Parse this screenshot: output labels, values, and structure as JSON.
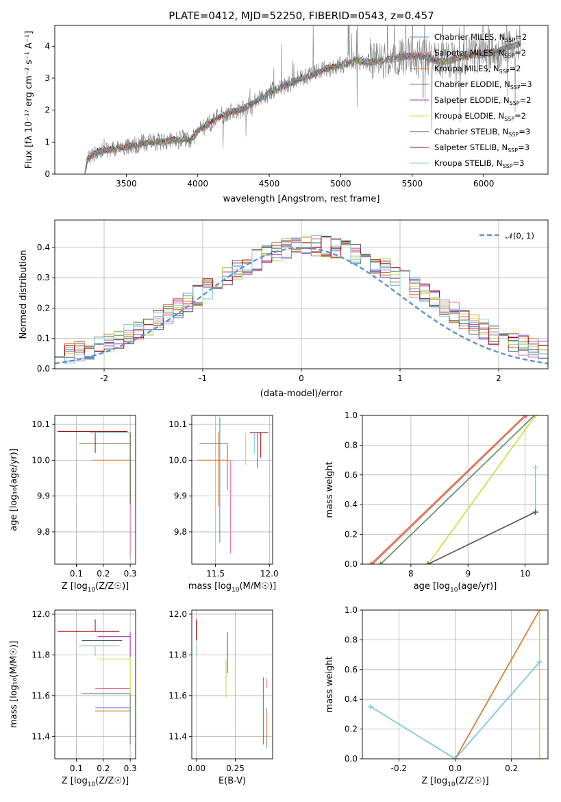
{
  "title": "PLATE=0412, MJD=52250, FIBERID=0543, z=0.457",
  "series_colors": {
    "Chabrier MILES": "#5a8fd8",
    "Salpeter MILES": "#e6739f",
    "Kroupa MILES": "#e07b2a",
    "Chabrier ELODIE": "#5e8a5a",
    "Salpeter ELODIE": "#9e3bb8",
    "Kroupa ELODIE": "#c8dc3a",
    "Chabrier STELIB": "#555555",
    "Salpeter STELIB": "#a01010",
    "Kroupa STELIB": "#80cad6"
  },
  "data_color": "#808080",
  "chart_data": [
    {
      "id": "spectrum",
      "type": "line",
      "title": "PLATE=0412, MJD=52250, FIBERID=0543, z=0.457",
      "xlabel": "wavelength [Angstrom, rest frame]",
      "ylabel": "Flux [fλ 10⁻¹⁷ erg cm⁻² s⁻¹ A⁻¹]",
      "xlim": [
        3000,
        6450
      ],
      "ylim": [
        0,
        4.65
      ],
      "xticks": [
        3500,
        4000,
        4500,
        5000,
        5500,
        6000
      ],
      "yticks": [
        0,
        1,
        2,
        3,
        4
      ],
      "grid": false,
      "legend_position": "upper-right",
      "legend": [
        {
          "main": "Chabrier MILES, N",
          "sub": "SSP",
          "tail": "=2",
          "series": "Chabrier MILES"
        },
        {
          "main": "Salpeter MILES, N",
          "sub": "SSP",
          "tail": "=2",
          "series": "Salpeter MILES"
        },
        {
          "main": "Kroupa MILES, N",
          "sub": "SSP",
          "tail": "=2",
          "series": "Kroupa MILES"
        },
        {
          "main": "Chabrier ELODIE, N",
          "sub": "SSP",
          "tail": "=3",
          "series": "Chabrier ELODIE"
        },
        {
          "main": "Salpeter ELODIE, N",
          "sub": "SSP",
          "tail": "=2",
          "series": "Salpeter ELODIE"
        },
        {
          "main": "Kroupa ELODIE, N",
          "sub": "SSP",
          "tail": "=2",
          "series": "Kroupa ELODIE"
        },
        {
          "main": "Chabrier STELIB, N",
          "sub": "SSP",
          "tail": "=3",
          "series": "Chabrier STELIB"
        },
        {
          "main": "Salpeter STELIB, N",
          "sub": "SSP",
          "tail": "=3",
          "series": "Salpeter STELIB"
        },
        {
          "main": "Kroupa STELIB, N",
          "sub": "SSP",
          "tail": "=3",
          "series": "Kroupa STELIB"
        }
      ],
      "continuum_x": [
        3210,
        3230,
        3300,
        3400,
        3500,
        3600,
        3700,
        3800,
        3900,
        3950,
        4000,
        4100,
        4200,
        4300,
        4400,
        4500,
        4600,
        4700,
        4800,
        4900,
        5000,
        5100,
        5200,
        5300,
        5400,
        5500,
        5600,
        5700,
        5800,
        5900,
        6000,
        6100,
        6200,
        6260
      ],
      "continuum_y": [
        0.0,
        0.5,
        0.7,
        0.78,
        0.85,
        0.95,
        1.0,
        1.05,
        1.1,
        1.05,
        1.35,
        1.65,
        1.9,
        2.0,
        2.25,
        2.55,
        2.75,
        2.95,
        3.1,
        3.3,
        3.4,
        3.55,
        3.5,
        3.55,
        3.65,
        3.7,
        3.65,
        3.5,
        3.6,
        3.7,
        3.75,
        3.85,
        4.0,
        4.1
      ]
    },
    {
      "id": "residuals",
      "type": "step",
      "xlabel": "(data-model)/error",
      "ylabel": "Normed distribution",
      "xlim": [
        -2.5,
        2.5
      ],
      "ylim": [
        0,
        0.49
      ],
      "xticks": [
        -2,
        -1,
        0,
        1,
        2
      ],
      "yticks": [
        0.0,
        0.1,
        0.2,
        0.3,
        0.4
      ],
      "grid": true,
      "legend_position": "upper-right",
      "reference": {
        "name": "𝒩(0, 1)",
        "mean": 0,
        "sigma": 1,
        "color": "#5a8fd8"
      },
      "bin_width": 0.1
    },
    {
      "id": "age_vs_Z",
      "type": "errorbar",
      "xlabel_main": "Z [log",
      "xlabel_sub": "10",
      "xlabel_tail": "(Z/Z☉)]",
      "ylabel": "age  [log₁₀(age/yr)]",
      "xlim": [
        0.02,
        0.32
      ],
      "ylim": [
        9.71,
        10.125
      ],
      "xticks": [
        0.1,
        0.2,
        0.3
      ],
      "yticks": [
        9.8,
        9.9,
        10.0,
        10.1
      ],
      "grid": true,
      "points": [
        {
          "series": "Chabrier MILES",
          "x": 0.25,
          "y": 10.077,
          "xerr": [
            0.07,
            0.05
          ],
          "yerr": [
            0.0,
            0.0
          ]
        },
        {
          "series": "Salpeter MILES",
          "x": 0.3,
          "y": 10.0,
          "xerr": [
            0.0,
            0.0
          ],
          "yerr": [
            0.27,
            0.0
          ]
        },
        {
          "series": "Kroupa MILES",
          "x": 0.23,
          "y": 10.0,
          "xerr": [
            0.07,
            0.07
          ],
          "yerr": [
            0.0,
            0.0
          ]
        },
        {
          "series": "Chabrier ELODIE",
          "x": 0.24,
          "y": 10.047,
          "xerr": [
            0.13,
            0.06
          ],
          "yerr": [
            0.0,
            0.0
          ]
        },
        {
          "series": "Salpeter ELODIE",
          "x": 0.3,
          "y": 10.077,
          "xerr": [
            0.0,
            0.0
          ],
          "yerr": [
            0.0,
            0.0
          ]
        },
        {
          "series": "Kroupa ELODIE",
          "x": 0.3,
          "y": 10.077,
          "xerr": [
            0.1,
            0.0
          ],
          "yerr": [
            0.2,
            0.0
          ]
        },
        {
          "series": "Chabrier STELIB",
          "x": 0.3,
          "y": 10.077,
          "xerr": [
            0.0,
            0.0
          ],
          "yerr": [
            0.2,
            0.0
          ]
        },
        {
          "series": "Salpeter STELIB",
          "x": 0.17,
          "y": 10.08,
          "xerr": [
            0.14,
            0.12
          ],
          "yerr": [
            0.06,
            0.0
          ]
        },
        {
          "series": "Kroupa STELIB",
          "x": 0.3,
          "y": 10.077,
          "xerr": [
            0.15,
            0.0
          ],
          "yerr": [
            0.0,
            0.0
          ]
        }
      ]
    },
    {
      "id": "age_vs_mass",
      "type": "errorbar",
      "xlabel_main": "mass [log",
      "xlabel_sub": "10",
      "xlabel_tail": "(M/M☉)]",
      "ylabel": "",
      "xlim": [
        11.28,
        12.03
      ],
      "ylim": [
        9.71,
        10.125
      ],
      "xticks": [
        11.5,
        12.0
      ],
      "yticks": [
        9.8,
        9.9,
        10.0,
        10.1
      ],
      "grid": true,
      "points": [
        {
          "series": "Chabrier MILES",
          "x": 11.54,
          "y": 10.0,
          "xerr": [
            0.0,
            0.0
          ],
          "yerr": [
            0.23,
            0.12
          ]
        },
        {
          "series": "Salpeter MILES",
          "x": 11.64,
          "y": 10.0,
          "xerr": [
            0.0,
            0.0
          ],
          "yerr": [
            0.26,
            0.0
          ]
        },
        {
          "series": "Kroupa MILES",
          "x": 11.53,
          "y": 10.0,
          "xerr": [
            0.2,
            0.1
          ],
          "yerr": [
            0.13,
            0.08
          ]
        },
        {
          "series": "Chabrier ELODIE",
          "x": 11.61,
          "y": 10.047,
          "xerr": [
            0.26,
            0.0
          ],
          "yerr": [
            0.13,
            0.0
          ]
        },
        {
          "series": "Salpeter ELODIE",
          "x": 11.89,
          "y": 10.077,
          "xerr": [
            0.0,
            0.0
          ],
          "yerr": [
            0.1,
            0.0
          ]
        },
        {
          "series": "Kroupa ELODIE",
          "x": 11.78,
          "y": 10.077,
          "xerr": [
            0.0,
            0.0
          ],
          "yerr": [
            0.09,
            0.0
          ]
        },
        {
          "series": "Chabrier STELIB",
          "x": 11.89,
          "y": 10.077,
          "xerr": [
            0.0,
            0.04
          ],
          "yerr": [
            0.0,
            0.0
          ]
        },
        {
          "series": "Salpeter STELIB",
          "x": 11.92,
          "y": 10.077,
          "xerr": [
            0.1,
            0.07
          ],
          "yerr": [
            0.07,
            0.0
          ]
        },
        {
          "series": "Kroupa STELIB",
          "x": 11.86,
          "y": 10.077,
          "xerr": [
            0.0,
            0.0
          ],
          "yerr": [
            0.06,
            0.0
          ]
        }
      ]
    },
    {
      "id": "mass_weight_vs_age",
      "type": "line",
      "xlabel_main": "age  [log",
      "xlabel_sub": "10",
      "xlabel_tail": "(age/yr)]",
      "ylabel": "mass weight",
      "xlim": [
        7.15,
        10.4
      ],
      "ylim": [
        0.0,
        1.0
      ],
      "xticks": [
        8,
        9,
        10
      ],
      "yticks": [
        0.0,
        0.2,
        0.4,
        0.6,
        0.8,
        1.0
      ],
      "grid": true,
      "series": [
        {
          "name": "Chabrier MILES",
          "x": [
            7.3,
            10.0
          ],
          "y": [
            0.0,
            1.0
          ]
        },
        {
          "name": "Salpeter MILES",
          "x": [
            7.33,
            10.02
          ],
          "y": [
            0.0,
            1.0
          ]
        },
        {
          "name": "Kroupa MILES",
          "x": [
            7.3,
            10.0
          ],
          "y": [
            0.0,
            1.0
          ]
        },
        {
          "name": "Chabrier ELODIE",
          "x": [
            7.47,
            10.16
          ],
          "y": [
            0.0,
            1.0
          ]
        },
        {
          "name": "Kroupa ELODIE",
          "x": [
            8.3,
            10.18
          ],
          "y": [
            0.0,
            1.0
          ]
        },
        {
          "name": "Kroupa STELIB",
          "x": [
            8.3,
            10.18,
            10.18
          ],
          "y": [
            0.0,
            0.35,
            0.65
          ]
        },
        {
          "name": "Chabrier STELIB",
          "x": [
            8.3,
            10.18
          ],
          "y": [
            0.0,
            0.35
          ]
        }
      ]
    },
    {
      "id": "mass_vs_Z",
      "type": "errorbar",
      "xlabel_main": "Z [log",
      "xlabel_sub": "10",
      "xlabel_tail": "(Z/Z☉)]",
      "ylabel": "mass [log₁₀(M/M☉)]",
      "xlim": [
        0.02,
        0.32
      ],
      "ylim": [
        11.29,
        12.02
      ],
      "xticks": [
        0.1,
        0.2,
        0.3
      ],
      "yticks": [
        11.4,
        11.6,
        11.8,
        12.0
      ],
      "grid": true,
      "points": [
        {
          "series": "Chabrier MILES",
          "x": 0.3,
          "y": 11.54,
          "xerr": [
            0.13,
            0.0
          ],
          "yerr": [
            0.0,
            0.0
          ]
        },
        {
          "series": "Salpeter MILES",
          "x": 0.3,
          "y": 11.635,
          "xerr": [
            0.13,
            0.0
          ],
          "yerr": [
            0.0,
            0.0
          ]
        },
        {
          "series": "Kroupa MILES",
          "x": 0.3,
          "y": 11.525,
          "xerr": [
            0.13,
            0.0
          ],
          "yerr": [
            0.0,
            0.0
          ]
        },
        {
          "series": "Chabrier ELODIE",
          "x": 0.3,
          "y": 11.61,
          "xerr": [
            0.18,
            0.0
          ],
          "yerr": [
            0.25,
            0.0
          ]
        },
        {
          "series": "Salpeter ELODIE",
          "x": 0.3,
          "y": 11.89,
          "xerr": [
            0.12,
            0.0
          ],
          "yerr": [
            0.1,
            0.02
          ]
        },
        {
          "series": "Kroupa ELODIE",
          "x": 0.3,
          "y": 11.78,
          "xerr": [
            0.12,
            0.0
          ],
          "yerr": [
            0.17,
            0.0
          ]
        },
        {
          "series": "Chabrier STELIB",
          "x": 0.17,
          "y": 11.87,
          "xerr": [
            0.05,
            0.1
          ],
          "yerr": [
            0.0,
            0.0
          ]
        },
        {
          "series": "Salpeter STELIB",
          "x": 0.17,
          "y": 11.915,
          "xerr": [
            0.14,
            0.09
          ],
          "yerr": [
            0.0,
            0.06
          ]
        },
        {
          "series": "Kroupa STELIB",
          "x": 0.17,
          "y": 11.845,
          "xerr": [
            0.06,
            0.09
          ],
          "yerr": [
            0.05,
            0.0
          ]
        }
      ]
    },
    {
      "id": "mass_vs_ebv",
      "type": "errorbar",
      "xlabel": "E(B-V)",
      "ylabel": "",
      "xlim": [
        -0.03,
        0.49
      ],
      "ylim": [
        11.29,
        12.02
      ],
      "xticks": [
        0.0,
        0.25
      ],
      "yticks": [
        11.4,
        11.6,
        11.8,
        12.0
      ],
      "grid": true,
      "points": [
        {
          "series": "Chabrier MILES",
          "x": 0.45,
          "y": 11.54,
          "xerr": [
            0.0,
            0.0
          ],
          "yerr": [
            0.2,
            0.0
          ]
        },
        {
          "series": "Salpeter MILES",
          "x": 0.45,
          "y": 11.635,
          "xerr": [
            0.0,
            0.0
          ],
          "yerr": [
            0.0,
            0.05
          ]
        },
        {
          "series": "Kroupa MILES",
          "x": 0.45,
          "y": 11.525,
          "xerr": [
            0.0,
            0.0
          ],
          "yerr": [
            0.16,
            0.0
          ]
        },
        {
          "series": "Chabrier ELODIE",
          "x": 0.43,
          "y": 11.61,
          "xerr": [
            0.0,
            0.0
          ],
          "yerr": [
            0.25,
            0.08
          ]
        },
        {
          "series": "Salpeter ELODIE",
          "x": 0.2,
          "y": 11.89,
          "xerr": [
            0.0,
            0.0
          ],
          "yerr": [
            0.18,
            0.02
          ]
        },
        {
          "series": "Kroupa ELODIE",
          "x": 0.19,
          "y": 11.78,
          "xerr": [
            0.0,
            0.0
          ],
          "yerr": [
            0.19,
            0.0
          ]
        },
        {
          "series": "Chabrier STELIB",
          "x": 0.0,
          "y": 11.87,
          "xerr": [
            0.0,
            0.0
          ],
          "yerr": [
            0.0,
            0.1
          ]
        },
        {
          "series": "Salpeter STELIB",
          "x": 0.0,
          "y": 11.915,
          "xerr": [
            0.0,
            0.0
          ],
          "yerr": [
            0.04,
            0.06
          ]
        },
        {
          "series": "Kroupa STELIB",
          "x": 0.0,
          "y": 11.845,
          "xerr": [
            0.0,
            0.0
          ],
          "yerr": [
            0.05,
            0.0
          ]
        }
      ]
    },
    {
      "id": "mass_weight_vs_Z",
      "type": "line",
      "xlabel_main": "Z [log",
      "xlabel_sub": "10",
      "xlabel_tail": "(Z/Z☉)]",
      "ylabel": "mass weight",
      "xlim": [
        -0.33,
        0.33
      ],
      "ylim": [
        0.0,
        1.0
      ],
      "xticks": [
        -0.2,
        0.0,
        0.2
      ],
      "yticks": [
        0.0,
        0.2,
        0.4,
        0.6,
        0.8,
        1.0
      ],
      "grid": true,
      "series": [
        {
          "name": "Chabrier ELODIE",
          "x": [
            0.0,
            0.3
          ],
          "y": [
            0.0,
            1.0
          ]
        },
        {
          "name": "Kroupa MILES",
          "x": [
            0.0,
            0.3
          ],
          "y": [
            0.0,
            1.0
          ]
        },
        {
          "name": "Kroupa ELODIE",
          "x": [
            0.3,
            0.3
          ],
          "y": [
            0.0,
            1.0
          ]
        },
        {
          "name": "Chabrier MILES",
          "x": [
            -0.3,
            0.0,
            0.3
          ],
          "y": [
            0.35,
            0.0,
            0.65
          ]
        },
        {
          "name": "Kroupa STELIB",
          "x": [
            -0.3,
            0.0,
            0.3
          ],
          "y": [
            0.35,
            0.0,
            0.65
          ]
        }
      ]
    }
  ]
}
